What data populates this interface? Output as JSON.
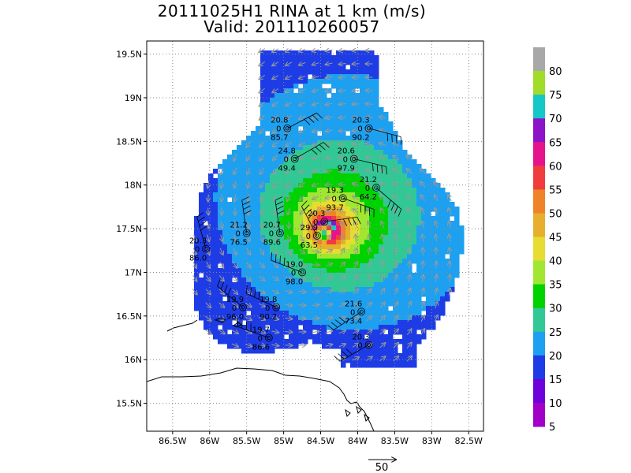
{
  "header": {
    "title": "20111025H1 RINA at 1 km (m/s)",
    "valid": "Valid: 201110260057"
  },
  "axes": {
    "lon_ticks": [
      "86.5W",
      "86W",
      "85.5W",
      "85W",
      "84.5W",
      "84W",
      "83.5W",
      "83W",
      "82.5W"
    ],
    "lat_ticks": [
      "19.5N",
      "19N",
      "18.5N",
      "18N",
      "17.5N",
      "17N",
      "16.5N",
      "16N",
      "15.5N"
    ],
    "lon_values": [
      -86.5,
      -86,
      -85.5,
      -85,
      -84.5,
      -84,
      -83.5,
      -83,
      -82.5
    ],
    "lat_values": [
      19.5,
      19,
      18.5,
      18,
      17.5,
      17,
      16.5,
      16,
      15.5
    ],
    "lon_range": [
      -86.85,
      -82.3
    ],
    "lat_range": [
      15.18,
      19.65
    ],
    "grid": "dotted"
  },
  "colorbar": {
    "labels": [
      "80",
      "75",
      "70",
      "65",
      "60",
      "55",
      "50",
      "45",
      "40",
      "35",
      "30",
      "25",
      "20",
      "15",
      "10",
      "5"
    ],
    "colors": [
      "#a8a8a8",
      "#a0dc28",
      "#14c8c8",
      "#8c14c8",
      "#e6148c",
      "#f03c3c",
      "#f08228",
      "#e6af2d",
      "#e6dc32",
      "#a0e632",
      "#00d200",
      "#32c896",
      "#1ea0f0",
      "#1e3ce6",
      "#6e00dc",
      "#a000c8"
    ]
  },
  "storm": {
    "center_lon": -84.45,
    "center_lat": 17.45,
    "max_wind": 63.5
  },
  "reference_vector": {
    "label": "50"
  },
  "stations": [
    {
      "lon": -84.95,
      "lat": 18.65,
      "top": "20.8",
      "bottom": "85.7"
    },
    {
      "lon": -83.85,
      "lat": 18.65,
      "top": "20.3",
      "bottom": "90.2"
    },
    {
      "lon": -84.85,
      "lat": 18.3,
      "top": "24.8",
      "bottom": "49.4"
    },
    {
      "lon": -84.05,
      "lat": 18.3,
      "top": "20.6",
      "bottom": "97.9"
    },
    {
      "lon": -83.75,
      "lat": 17.97,
      "top": "21.2",
      "bottom": "64.2"
    },
    {
      "lon": -84.2,
      "lat": 17.85,
      "top": "19.3",
      "bottom": "93.7"
    },
    {
      "lon": -84.45,
      "lat": 17.58,
      "top": "20.3",
      "bottom": ""
    },
    {
      "lon": -84.55,
      "lat": 17.42,
      "top": "29.9",
      "bottom": "63.5"
    },
    {
      "lon": -85.05,
      "lat": 17.45,
      "top": "20.7",
      "bottom": "89.6"
    },
    {
      "lon": -85.5,
      "lat": 17.45,
      "top": "21.2",
      "bottom": "76.5"
    },
    {
      "lon": -86.05,
      "lat": 17.27,
      "top": "20.3",
      "bottom": "86.0"
    },
    {
      "lon": -84.75,
      "lat": 17.0,
      "top": "19.0",
      "bottom": "98.0"
    },
    {
      "lon": -85.55,
      "lat": 16.6,
      "top": "19.9",
      "bottom": "96.0"
    },
    {
      "lon": -85.1,
      "lat": 16.6,
      "top": "19.8",
      "bottom": "90.2"
    },
    {
      "lon": -83.95,
      "lat": 16.55,
      "top": "21.6",
      "bottom": "73.4"
    },
    {
      "lon": -85.2,
      "lat": 16.25,
      "top": "19.7",
      "bottom": "86.6"
    },
    {
      "lon": -83.85,
      "lat": 16.17,
      "top": "20.3",
      "bottom": ""
    }
  ]
}
